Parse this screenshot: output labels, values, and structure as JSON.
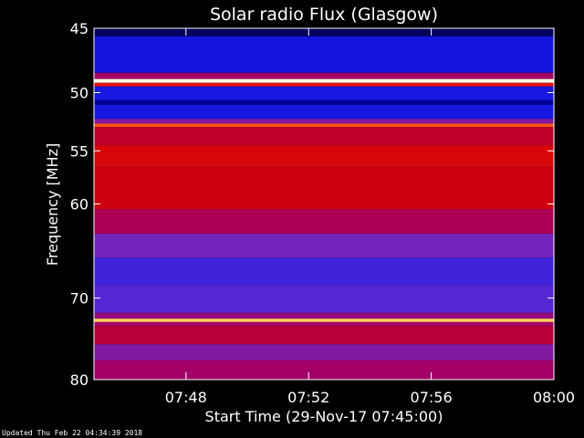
{
  "chart_data": {
    "type": "heatmap",
    "title": "Solar radio Flux (Glasgow)",
    "xlabel": "Start Time (29-Nov-17 07:45:00)",
    "ylabel": "Frequency [MHz]",
    "x_unit": "time",
    "x_range": [
      "07:45",
      "08:00"
    ],
    "xticks": [
      "07:48",
      "07:52",
      "07:56",
      "08:00"
    ],
    "y_range": [
      45,
      80
    ],
    "y_scale": "log",
    "yticks": [
      45,
      50,
      55,
      60,
      70,
      80
    ],
    "grid": false,
    "colormap": [
      "#000000",
      "#0000cc",
      "#1e1ee8",
      "#6a2bc8",
      "#a0006a",
      "#d0000a",
      "#ff3010",
      "#ffb030",
      "#ffffa0",
      "#ffffff"
    ],
    "bands": [
      {
        "f0": 45.0,
        "f1": 45.6,
        "level": 0.05
      },
      {
        "f0": 45.6,
        "f1": 48.4,
        "level": 0.18
      },
      {
        "f0": 48.4,
        "f1": 48.9,
        "level": 0.45
      },
      {
        "f0": 48.9,
        "f1": 49.2,
        "level": 0.97
      },
      {
        "f0": 49.2,
        "f1": 49.5,
        "level": 0.6
      },
      {
        "f0": 49.5,
        "f1": 50.6,
        "level": 0.2
      },
      {
        "f0": 50.6,
        "f1": 51.0,
        "level": 0.08
      },
      {
        "f0": 51.0,
        "f1": 52.2,
        "level": 0.2
      },
      {
        "f0": 52.2,
        "f1": 52.6,
        "level": 0.38
      },
      {
        "f0": 52.6,
        "f1": 52.9,
        "level": 0.7
      },
      {
        "f0": 52.9,
        "f1": 54.5,
        "level": 0.52
      },
      {
        "f0": 54.5,
        "f1": 56.5,
        "level": 0.57
      },
      {
        "f0": 56.5,
        "f1": 60.5,
        "level": 0.55
      },
      {
        "f0": 60.5,
        "f1": 63.0,
        "level": 0.47
      },
      {
        "f0": 63.0,
        "f1": 65.5,
        "level": 0.35
      },
      {
        "f0": 65.5,
        "f1": 68.5,
        "level": 0.27
      },
      {
        "f0": 68.5,
        "f1": 71.7,
        "level": 0.3
      },
      {
        "f0": 71.7,
        "f1": 72.4,
        "level": 0.42
      },
      {
        "f0": 72.4,
        "f1": 72.8,
        "level": 0.82
      },
      {
        "f0": 72.8,
        "f1": 73.3,
        "level": 0.45
      },
      {
        "f0": 73.3,
        "f1": 75.5,
        "level": 0.5
      },
      {
        "f0": 75.5,
        "f1": 77.5,
        "level": 0.38
      },
      {
        "f0": 77.5,
        "f1": 80.0,
        "level": 0.45
      }
    ]
  },
  "footer": {
    "updated": "Updated Thu Feb 22 04:34:39 2018"
  }
}
